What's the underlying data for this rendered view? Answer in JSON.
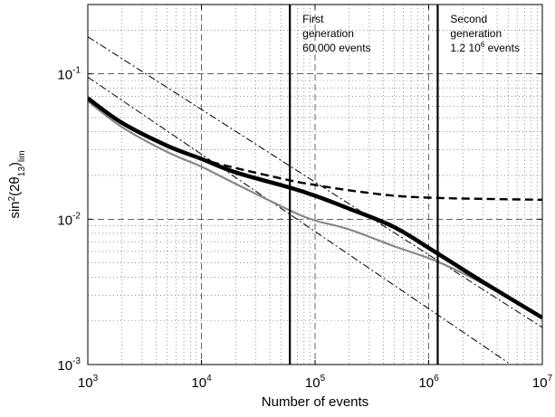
{
  "chart_data": {
    "type": "line",
    "title": "",
    "xlabel": "Number of events",
    "ylabel": {
      "base": "sin",
      "sup": "2",
      "open": "(2θ",
      "sub1": "13",
      "close": ")",
      "sub2": "lim"
    },
    "x_scale": "log",
    "y_scale": "log",
    "xlim": [
      1000,
      10000000
    ],
    "ylim": [
      0.001,
      0.3
    ],
    "grid": true,
    "x_ticks": [
      {
        "value": 1000,
        "base": "10",
        "exp": "3"
      },
      {
        "value": 10000,
        "base": "10",
        "exp": "4"
      },
      {
        "value": 100000,
        "base": "10",
        "exp": "5"
      },
      {
        "value": 1000000,
        "base": "10",
        "exp": "6"
      },
      {
        "value": 10000000,
        "base": "10",
        "exp": "7"
      }
    ],
    "y_ticks": [
      {
        "value": 0.001,
        "base": "10",
        "exp": "-3"
      },
      {
        "value": 0.01,
        "base": "10",
        "exp": "-2"
      },
      {
        "value": 0.1,
        "base": "10",
        "exp": "-1"
      }
    ],
    "vertical_lines": [
      60000,
      1200000
    ],
    "annotations": [
      {
        "x_value": 60000,
        "lines": [
          "First",
          "generation",
          "60,000 events"
        ]
      },
      {
        "x_value": 1200000,
        "lines": [
          "Second",
          "generation"
        ],
        "last_line": {
          "pre": "1.2 10",
          "sup": "6",
          "post": " events"
        }
      }
    ],
    "series": [
      {
        "style": "thick-black",
        "x": [
          1000,
          2000,
          5000,
          10000,
          20000,
          60000,
          100000,
          200000,
          500000,
          1200000,
          3000000,
          10000000
        ],
        "y": [
          0.068,
          0.046,
          0.032,
          0.026,
          0.021,
          0.0165,
          0.0145,
          0.0118,
          0.0088,
          0.0058,
          0.0037,
          0.0021
        ]
      },
      {
        "style": "dashed-black",
        "x": [
          1000,
          2000,
          5000,
          10000,
          20000,
          60000,
          100000,
          200000,
          500000,
          1200000,
          3000000,
          10000000
        ],
        "y": [
          0.067,
          0.046,
          0.032,
          0.026,
          0.0225,
          0.0185,
          0.0172,
          0.0158,
          0.0145,
          0.014,
          0.0138,
          0.0136
        ]
      },
      {
        "style": "gray",
        "x": [
          1000,
          2000,
          5000,
          10000,
          20000,
          60000,
          100000,
          200000,
          500000,
          1200000,
          3000000,
          10000000
        ],
        "y": [
          0.065,
          0.043,
          0.029,
          0.023,
          0.0175,
          0.0115,
          0.0098,
          0.0085,
          0.0065,
          0.0051,
          0.0036,
          0.0021
        ]
      },
      {
        "style": "dashdot-black",
        "x": [
          1000,
          10000000
        ],
        "y": [
          0.18,
          0.0018
        ]
      },
      {
        "style": "dashdot-black",
        "x": [
          1000,
          5000000
        ],
        "y": [
          0.095,
          0.00103
        ]
      }
    ],
    "colors": {
      "axis": "#000000",
      "grid": "#555555",
      "gray_series": "#888888"
    }
  }
}
